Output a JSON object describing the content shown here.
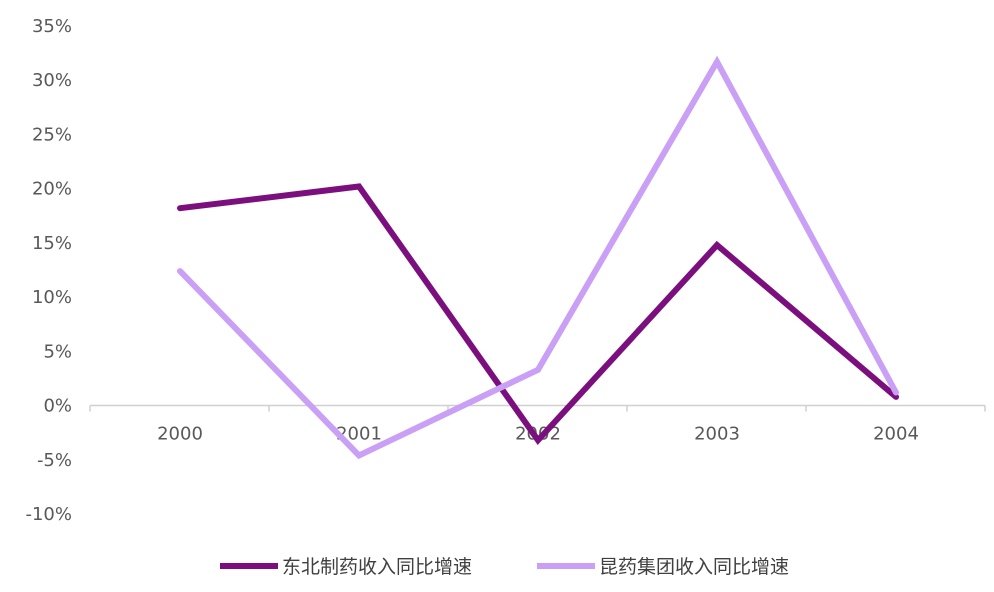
{
  "chart_data": {
    "type": "line",
    "title": "",
    "xlabel": "",
    "ylabel": "",
    "categories": [
      "2000",
      "2001",
      "2002",
      "2003",
      "2004"
    ],
    "y_ticks": [
      "35%",
      "30%",
      "25%",
      "20%",
      "15%",
      "10%",
      "5%",
      "0%",
      "-5%",
      "-10%"
    ],
    "ylim": [
      -10,
      35
    ],
    "y_unit": "%",
    "grid": false,
    "legend_position": "bottom",
    "series": [
      {
        "name": "东北制药收入同比增速",
        "color": "#7B0F7E",
        "values": [
          18.2,
          20.2,
          -3.2,
          14.8,
          0.8
        ]
      },
      {
        "name": "昆药集团收入同比增速",
        "color": "#C9A0F5",
        "values": [
          12.4,
          -4.6,
          3.3,
          31.7,
          1.2
        ]
      }
    ]
  }
}
